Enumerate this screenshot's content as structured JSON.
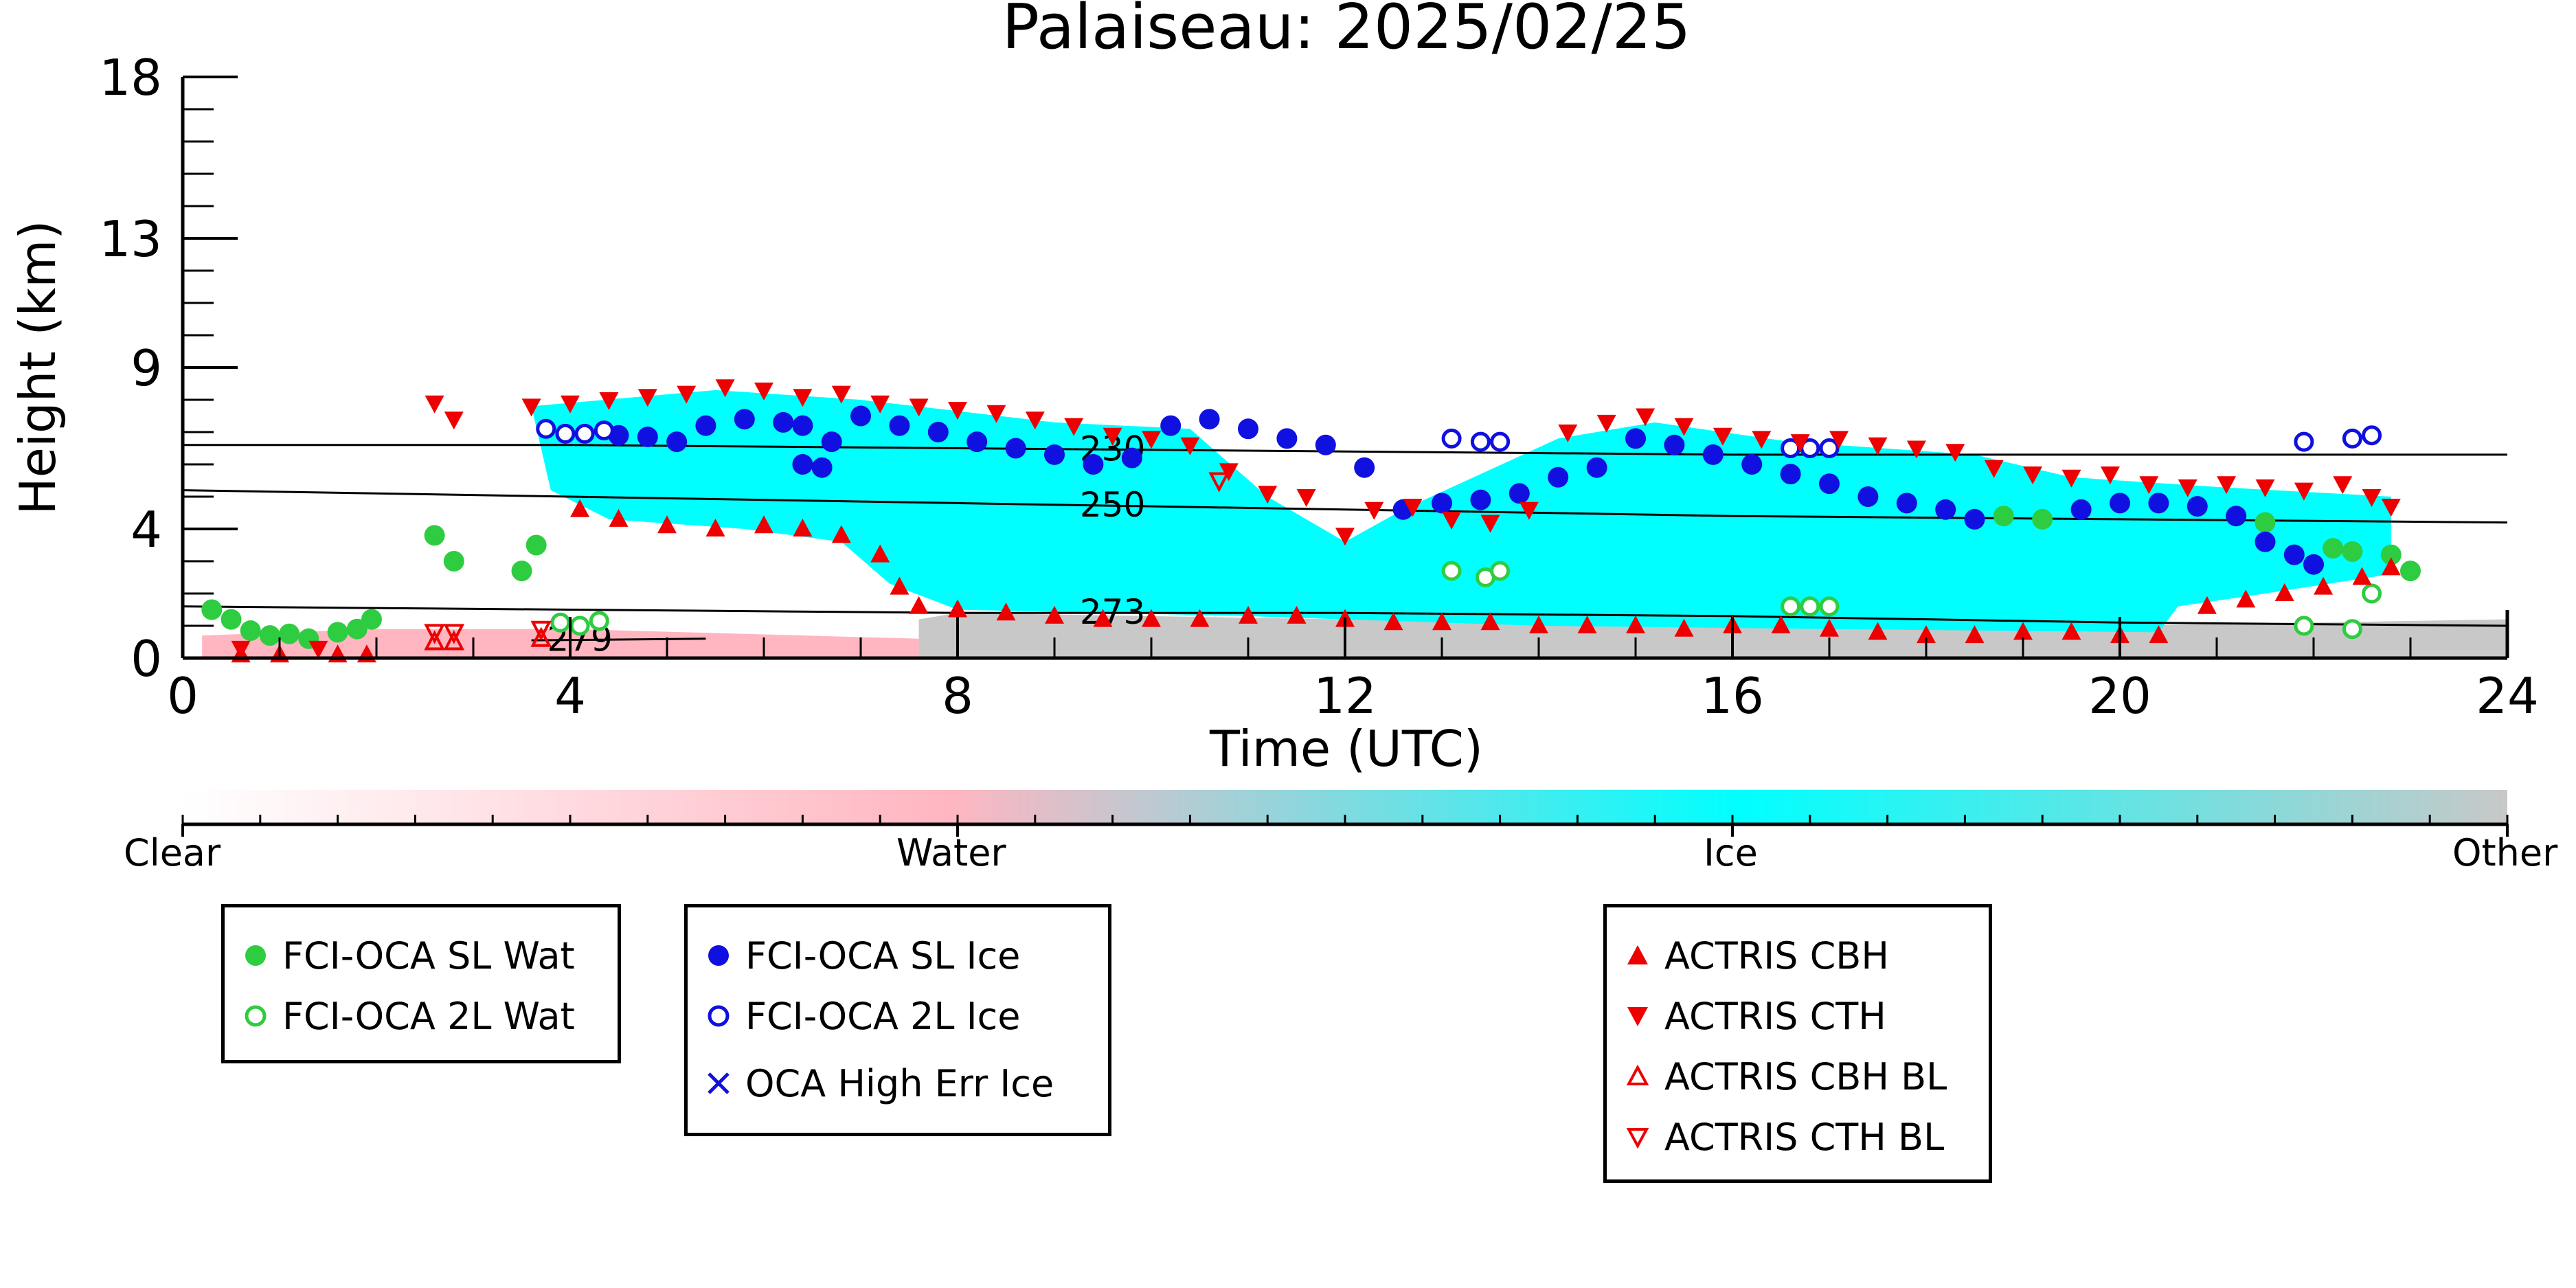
{
  "chart_data": {
    "type": "scatter",
    "title": "Palaiseau: 2025/02/25",
    "xlabel": "Time (UTC)",
    "ylabel": "Height (km)",
    "xlim": [
      0,
      24
    ],
    "ylim": [
      0,
      18
    ],
    "xticks": [
      0,
      4,
      8,
      12,
      16,
      20,
      24
    ],
    "yticks": [
      0,
      4,
      9,
      13,
      18
    ],
    "grid": false,
    "colors": {
      "water_point": "#2ecc40",
      "ice_point": "#1010e0",
      "actris": "#ee0000",
      "ice_field": "#00ffff",
      "water_field": "#ffb6c1",
      "other_field": "#c8c8c8"
    },
    "colorbar": {
      "labels": [
        "Clear",
        "Water",
        "Ice",
        "Other"
      ]
    },
    "contours": [
      {
        "label": "230",
        "points": [
          [
            0,
            6.6
          ],
          [
            4,
            6.6
          ],
          [
            8,
            6.5
          ],
          [
            12,
            6.4
          ],
          [
            16,
            6.3
          ],
          [
            20,
            6.3
          ],
          [
            24,
            6.3
          ]
        ]
      },
      {
        "label": "250",
        "points": [
          [
            0,
            5.2
          ],
          [
            4,
            5.0
          ],
          [
            8,
            4.8
          ],
          [
            12,
            4.6
          ],
          [
            16,
            4.4
          ],
          [
            20,
            4.3
          ],
          [
            24,
            4.2
          ]
        ]
      },
      {
        "label": "273",
        "points": [
          [
            0,
            1.6
          ],
          [
            4,
            1.5
          ],
          [
            8,
            1.4
          ],
          [
            12,
            1.4
          ],
          [
            16,
            1.3
          ],
          [
            20,
            1.1
          ],
          [
            24,
            1.0
          ]
        ]
      },
      {
        "label": "279",
        "points": [
          [
            3.6,
            0.55
          ],
          [
            5.4,
            0.6
          ]
        ]
      }
    ],
    "series": [
      {
        "name": "FCI-OCA SL Wat",
        "marker": "filled-circle",
        "points": [
          [
            0.3,
            1.5
          ],
          [
            0.5,
            1.2
          ],
          [
            0.7,
            0.85
          ],
          [
            0.9,
            0.7
          ],
          [
            1.1,
            0.75
          ],
          [
            1.3,
            0.6
          ],
          [
            1.6,
            0.8
          ],
          [
            1.8,
            0.9
          ],
          [
            1.95,
            1.2
          ],
          [
            2.6,
            3.8
          ],
          [
            2.8,
            3.0
          ],
          [
            3.5,
            2.7
          ],
          [
            3.65,
            3.5
          ],
          [
            18.8,
            4.4
          ],
          [
            19.2,
            4.3
          ],
          [
            21.2,
            4.4
          ],
          [
            21.5,
            4.2
          ],
          [
            22.2,
            3.4
          ],
          [
            22.4,
            3.3
          ],
          [
            22.8,
            3.2
          ],
          [
            23.0,
            2.7
          ]
        ]
      },
      {
        "name": "FCI-OCA 2L Wat",
        "marker": "open-circle",
        "points": [
          [
            3.9,
            1.1
          ],
          [
            4.1,
            1.0
          ],
          [
            4.3,
            1.15
          ],
          [
            13.1,
            2.7
          ],
          [
            13.45,
            2.5
          ],
          [
            13.6,
            2.7
          ],
          [
            16.6,
            1.6
          ],
          [
            16.8,
            1.6
          ],
          [
            17.0,
            1.6
          ],
          [
            21.9,
            1.0
          ],
          [
            22.4,
            0.9
          ],
          [
            22.6,
            2.0
          ]
        ]
      },
      {
        "name": "FCI-OCA SL Ice",
        "marker": "filled-circle",
        "points": [
          [
            4.5,
            6.9
          ],
          [
            4.8,
            6.85
          ],
          [
            5.1,
            6.7
          ],
          [
            5.4,
            7.2
          ],
          [
            5.8,
            7.4
          ],
          [
            6.2,
            7.3
          ],
          [
            6.4,
            7.2
          ],
          [
            6.4,
            6.0
          ],
          [
            6.6,
            5.9
          ],
          [
            6.7,
            6.7
          ],
          [
            7.0,
            7.5
          ],
          [
            7.4,
            7.2
          ],
          [
            7.8,
            7.0
          ],
          [
            8.2,
            6.7
          ],
          [
            8.6,
            6.5
          ],
          [
            9.0,
            6.3
          ],
          [
            9.4,
            6.0
          ],
          [
            9.8,
            6.2
          ],
          [
            10.2,
            7.2
          ],
          [
            10.6,
            7.4
          ],
          [
            11.0,
            7.1
          ],
          [
            11.4,
            6.8
          ],
          [
            11.8,
            6.6
          ],
          [
            12.2,
            5.9
          ],
          [
            12.6,
            4.6
          ],
          [
            13.0,
            4.8
          ],
          [
            13.4,
            4.9
          ],
          [
            13.8,
            5.1
          ],
          [
            14.2,
            5.6
          ],
          [
            14.6,
            5.9
          ],
          [
            15.0,
            6.8
          ],
          [
            15.4,
            6.6
          ],
          [
            15.8,
            6.3
          ],
          [
            16.2,
            6.0
          ],
          [
            16.6,
            5.7
          ],
          [
            17.0,
            5.4
          ],
          [
            17.4,
            5.0
          ],
          [
            17.8,
            4.8
          ],
          [
            18.2,
            4.6
          ],
          [
            18.5,
            4.3
          ],
          [
            19.6,
            4.6
          ],
          [
            20.0,
            4.8
          ],
          [
            20.4,
            4.8
          ],
          [
            20.8,
            4.7
          ],
          [
            21.2,
            4.4
          ],
          [
            21.5,
            3.6
          ],
          [
            21.8,
            3.2
          ],
          [
            22.0,
            2.9
          ]
        ]
      },
      {
        "name": "FCI-OCA 2L Ice",
        "marker": "open-circle",
        "points": [
          [
            3.75,
            7.1
          ],
          [
            3.95,
            6.95
          ],
          [
            4.15,
            6.95
          ],
          [
            4.35,
            7.05
          ],
          [
            13.1,
            6.8
          ],
          [
            13.4,
            6.7
          ],
          [
            13.6,
            6.7
          ],
          [
            16.6,
            6.5
          ],
          [
            16.8,
            6.5
          ],
          [
            17.0,
            6.5
          ],
          [
            21.9,
            6.7
          ],
          [
            22.4,
            6.8
          ],
          [
            22.6,
            6.9
          ]
        ]
      },
      {
        "name": "OCA High Err Ice",
        "marker": "x",
        "points": []
      },
      {
        "name": "ACTRIS CBH",
        "marker": "filled-triangle-up",
        "points": [
          [
            4.1,
            4.6
          ],
          [
            4.5,
            4.3
          ],
          [
            5.0,
            4.1
          ],
          [
            5.5,
            4.0
          ],
          [
            6.0,
            4.1
          ],
          [
            6.4,
            4.0
          ],
          [
            6.8,
            3.8
          ],
          [
            7.2,
            3.2
          ],
          [
            7.4,
            2.2
          ],
          [
            7.6,
            1.6
          ],
          [
            8.0,
            1.5
          ],
          [
            8.5,
            1.4
          ],
          [
            9.0,
            1.3
          ],
          [
            9.5,
            1.2
          ],
          [
            10.0,
            1.2
          ],
          [
            10.5,
            1.2
          ],
          [
            11.0,
            1.3
          ],
          [
            11.5,
            1.3
          ],
          [
            12.0,
            1.2
          ],
          [
            12.5,
            1.1
          ],
          [
            13.0,
            1.1
          ],
          [
            13.5,
            1.1
          ],
          [
            14.0,
            1.0
          ],
          [
            14.5,
            1.0
          ],
          [
            15.0,
            1.0
          ],
          [
            15.5,
            0.9
          ],
          [
            16.0,
            1.0
          ],
          [
            16.5,
            1.0
          ],
          [
            17.0,
            0.9
          ],
          [
            17.5,
            0.8
          ],
          [
            18.0,
            0.7
          ],
          [
            18.5,
            0.7
          ],
          [
            19.0,
            0.8
          ],
          [
            19.5,
            0.8
          ],
          [
            20.0,
            0.7
          ],
          [
            20.4,
            0.7
          ],
          [
            20.9,
            1.6
          ],
          [
            21.3,
            1.8
          ],
          [
            21.7,
            2.0
          ],
          [
            22.1,
            2.2
          ],
          [
            22.5,
            2.5
          ],
          [
            22.8,
            2.8
          ],
          [
            0.6,
            0.1
          ],
          [
            1.0,
            0.1
          ],
          [
            1.6,
            0.1
          ],
          [
            1.9,
            0.1
          ]
        ]
      },
      {
        "name": "ACTRIS CTH",
        "marker": "filled-triangle-down",
        "points": [
          [
            2.6,
            7.9
          ],
          [
            2.8,
            7.4
          ],
          [
            3.6,
            7.8
          ],
          [
            4.0,
            7.9
          ],
          [
            4.4,
            8.0
          ],
          [
            4.8,
            8.1
          ],
          [
            5.2,
            8.2
          ],
          [
            5.6,
            8.4
          ],
          [
            6.0,
            8.3
          ],
          [
            6.4,
            8.1
          ],
          [
            6.8,
            8.2
          ],
          [
            7.2,
            7.9
          ],
          [
            7.6,
            7.8
          ],
          [
            8.0,
            7.7
          ],
          [
            8.4,
            7.6
          ],
          [
            8.8,
            7.4
          ],
          [
            9.2,
            7.2
          ],
          [
            9.6,
            6.9
          ],
          [
            10.0,
            6.8
          ],
          [
            10.4,
            6.6
          ],
          [
            10.8,
            5.8
          ],
          [
            11.2,
            5.1
          ],
          [
            11.6,
            5.0
          ],
          [
            12.0,
            3.8
          ],
          [
            12.3,
            4.6
          ],
          [
            12.7,
            4.7
          ],
          [
            13.1,
            4.3
          ],
          [
            13.5,
            4.2
          ],
          [
            13.9,
            4.6
          ],
          [
            14.3,
            7.0
          ],
          [
            14.7,
            7.3
          ],
          [
            15.1,
            7.5
          ],
          [
            15.5,
            7.2
          ],
          [
            15.9,
            6.9
          ],
          [
            16.3,
            6.8
          ],
          [
            16.7,
            6.7
          ],
          [
            17.1,
            6.8
          ],
          [
            17.5,
            6.6
          ],
          [
            17.9,
            6.5
          ],
          [
            18.3,
            6.4
          ],
          [
            18.7,
            5.9
          ],
          [
            19.1,
            5.7
          ],
          [
            19.5,
            5.6
          ],
          [
            19.9,
            5.7
          ],
          [
            20.3,
            5.4
          ],
          [
            20.7,
            5.3
          ],
          [
            21.1,
            5.4
          ],
          [
            21.5,
            5.3
          ],
          [
            21.9,
            5.2
          ],
          [
            22.3,
            5.4
          ],
          [
            22.6,
            5.0
          ],
          [
            22.8,
            4.7
          ],
          [
            0.6,
            0.3
          ],
          [
            1.4,
            0.3
          ]
        ]
      },
      {
        "name": "ACTRIS CBH BL",
        "marker": "open-triangle-up",
        "points": [
          [
            2.6,
            0.5
          ],
          [
            2.8,
            0.5
          ],
          [
            3.7,
            0.6
          ]
        ]
      },
      {
        "name": "ACTRIS CTH BL",
        "marker": "open-triangle-down",
        "points": [
          [
            2.6,
            0.8
          ],
          [
            2.8,
            0.8
          ],
          [
            3.7,
            0.9
          ],
          [
            10.7,
            5.5
          ]
        ]
      }
    ]
  }
}
